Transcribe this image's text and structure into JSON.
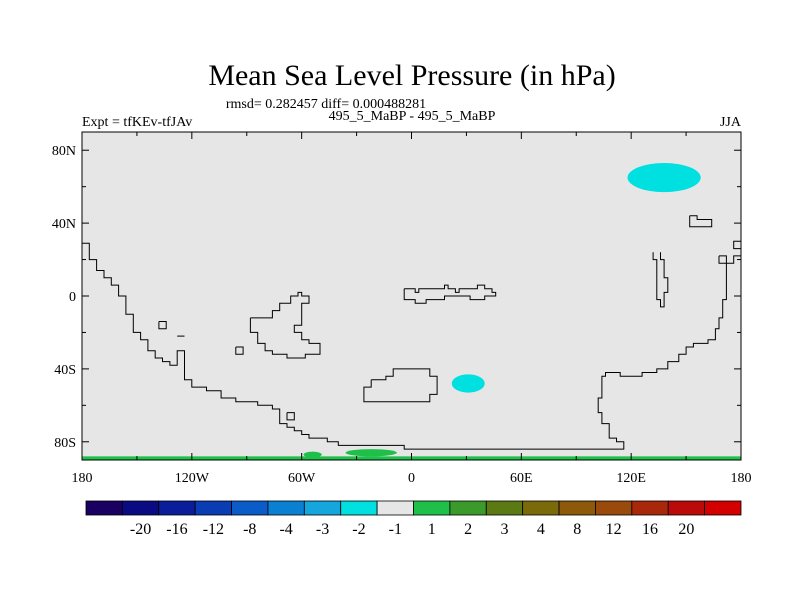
{
  "chart_data": {
    "type": "heatmap",
    "title": "Mean Sea Level Pressure (in hPa)",
    "stats_line": "rmsd= 0.282457 diff= 0.000488281",
    "experiment_label": "Expt = tfKEv-tfJAv",
    "subtitle": "495_5_MaBP - 495_5_MaBP",
    "season": "JJA",
    "xlim": [
      -180,
      180
    ],
    "ylim": [
      -90,
      90
    ],
    "x_ticks": [
      {
        "value": -180,
        "label": "180"
      },
      {
        "value": -120,
        "label": "120W"
      },
      {
        "value": -60,
        "label": "60W"
      },
      {
        "value": 0,
        "label": "0"
      },
      {
        "value": 60,
        "label": "60E"
      },
      {
        "value": 120,
        "label": "120E"
      },
      {
        "value": 180,
        "label": "180"
      }
    ],
    "y_ticks": [
      {
        "value": 80,
        "label": "80N"
      },
      {
        "value": 40,
        "label": "40N"
      },
      {
        "value": 0,
        "label": "0"
      },
      {
        "value": -40,
        "label": "40S"
      },
      {
        "value": -80,
        "label": "80S"
      }
    ],
    "background_bin_color": "#e6e6e6",
    "anomaly_regions": [
      {
        "lon": 138,
        "lat": 65,
        "lon_radius": 20,
        "lat_radius": 8,
        "color": "#00e0e0"
      },
      {
        "lon": 31,
        "lat": -48,
        "lon_radius": 9,
        "lat_radius": 5,
        "color": "#00e0e0"
      },
      {
        "lon": -22,
        "lat": -86,
        "lon_radius": 14,
        "lat_radius": 2,
        "color": "#1ec04a"
      },
      {
        "lon": -54,
        "lat": -87,
        "lon_radius": 5,
        "lat_radius": 1.6,
        "color": "#1ec04a"
      }
    ],
    "bottom_band": {
      "lat_from": -90,
      "lat_to": -88,
      "color": "#1ec04a"
    },
    "coastlines": [
      [
        [
          -180,
          29
        ],
        [
          -176,
          29
        ],
        [
          -176,
          20
        ],
        [
          -172,
          20
        ],
        [
          -172,
          14
        ],
        [
          -168,
          14
        ],
        [
          -168,
          10
        ],
        [
          -164,
          10
        ],
        [
          -164,
          6
        ],
        [
          -160,
          6
        ],
        [
          -160,
          0
        ],
        [
          -156,
          0
        ],
        [
          -156,
          -10
        ],
        [
          -152,
          -10
        ],
        [
          -152,
          -20
        ],
        [
          -148,
          -20
        ],
        [
          -148,
          -24
        ],
        [
          -144,
          -24
        ],
        [
          -144,
          -30
        ],
        [
          -140,
          -30
        ],
        [
          -140,
          -34
        ],
        [
          -136,
          -34
        ],
        [
          -136,
          -36
        ],
        [
          -132,
          -36
        ],
        [
          -132,
          -38
        ],
        [
          -128,
          -38
        ],
        [
          -128,
          -30
        ],
        [
          -124,
          -30
        ],
        [
          -124,
          -46
        ],
        [
          -120,
          -46
        ],
        [
          -120,
          -50
        ],
        [
          -112,
          -50
        ],
        [
          -112,
          -52
        ],
        [
          -104,
          -52
        ],
        [
          -104,
          -56
        ],
        [
          -96,
          -56
        ],
        [
          -96,
          -58
        ],
        [
          -84,
          -58
        ],
        [
          -84,
          -60
        ],
        [
          -76,
          -60
        ],
        [
          -76,
          -62
        ],
        [
          -72,
          -62
        ],
        [
          -72,
          -70
        ],
        [
          -68,
          -70
        ],
        [
          -68,
          -72
        ],
        [
          -64,
          -72
        ],
        [
          -64,
          -74
        ],
        [
          -60,
          -74
        ],
        [
          -60,
          -76
        ],
        [
          -56,
          -76
        ],
        [
          -56,
          -78
        ],
        [
          -46,
          -78
        ],
        [
          -46,
          -80
        ],
        [
          -40,
          -80
        ],
        [
          -40,
          -82
        ],
        [
          -4,
          -82
        ],
        [
          -4,
          -84
        ],
        [
          116,
          -84
        ],
        [
          116,
          -80
        ],
        [
          112,
          -80
        ],
        [
          112,
          -78
        ],
        [
          108,
          -78
        ],
        [
          108,
          -70
        ],
        [
          104,
          -70
        ],
        [
          104,
          -64
        ],
        [
          102,
          -64
        ],
        [
          102,
          -56
        ],
        [
          104,
          -56
        ],
        [
          104,
          -44
        ],
        [
          106,
          -44
        ],
        [
          106,
          -42
        ],
        [
          114,
          -42
        ],
        [
          114,
          -44
        ],
        [
          126,
          -44
        ],
        [
          126,
          -42
        ],
        [
          134,
          -42
        ],
        [
          134,
          -40
        ],
        [
          140,
          -40
        ],
        [
          140,
          -36
        ],
        [
          146,
          -36
        ],
        [
          146,
          -32
        ],
        [
          150,
          -32
        ],
        [
          150,
          -28
        ],
        [
          154,
          -28
        ],
        [
          154,
          -26
        ],
        [
          162,
          -26
        ],
        [
          162,
          -24
        ],
        [
          166,
          -24
        ],
        [
          166,
          -18
        ],
        [
          168,
          -18
        ],
        [
          168,
          -12
        ],
        [
          170,
          -12
        ],
        [
          170,
          -2
        ],
        [
          172,
          -2
        ],
        [
          172,
          18
        ],
        [
          176,
          18
        ],
        [
          176,
          22
        ],
        [
          180,
          22
        ]
      ],
      [
        [
          180,
          30
        ],
        [
          176,
          30
        ],
        [
          176,
          26
        ],
        [
          180,
          26
        ]
      ],
      [
        [
          -138,
          -14
        ],
        [
          -134,
          -14
        ],
        [
          -134,
          -18
        ],
        [
          -138,
          -18
        ],
        [
          -138,
          -14
        ]
      ],
      [
        [
          -128,
          -22
        ],
        [
          -124,
          -22
        ]
      ],
      [
        [
          -96,
          -28
        ],
        [
          -92,
          -28
        ],
        [
          -92,
          -32
        ],
        [
          -96,
          -32
        ],
        [
          -96,
          -28
        ]
      ],
      [
        [
          -88,
          -12
        ],
        [
          -76,
          -12
        ],
        [
          -76,
          -8
        ],
        [
          -72,
          -8
        ],
        [
          -72,
          -4
        ],
        [
          -66,
          -4
        ],
        [
          -66,
          0
        ],
        [
          -62,
          0
        ],
        [
          -62,
          2
        ],
        [
          -60,
          2
        ],
        [
          -60,
          0
        ],
        [
          -56,
          0
        ],
        [
          -56,
          -4
        ],
        [
          -60,
          -4
        ],
        [
          -60,
          -16
        ],
        [
          -64,
          -16
        ],
        [
          -64,
          -20
        ],
        [
          -60,
          -20
        ],
        [
          -60,
          -24
        ],
        [
          -56,
          -24
        ],
        [
          -56,
          -26
        ],
        [
          -50,
          -26
        ],
        [
          -50,
          -32
        ],
        [
          -58,
          -32
        ],
        [
          -58,
          -34
        ],
        [
          -68,
          -34
        ],
        [
          -68,
          -32
        ],
        [
          -76,
          -32
        ],
        [
          -76,
          -30
        ],
        [
          -80,
          -30
        ],
        [
          -80,
          -26
        ],
        [
          -84,
          -26
        ],
        [
          -84,
          -20
        ],
        [
          -88,
          -20
        ],
        [
          -88,
          -12
        ]
      ],
      [
        [
          -68,
          -64
        ],
        [
          -64,
          -64
        ],
        [
          -64,
          -68
        ],
        [
          -68,
          -68
        ],
        [
          -68,
          -64
        ]
      ],
      [
        [
          -4,
          4
        ],
        [
          2,
          4
        ],
        [
          2,
          2
        ],
        [
          4,
          2
        ],
        [
          4,
          4
        ],
        [
          18,
          4
        ],
        [
          18,
          6
        ],
        [
          20,
          6
        ],
        [
          20,
          4
        ],
        [
          24,
          4
        ],
        [
          24,
          2
        ],
        [
          26,
          2
        ],
        [
          26,
          4
        ],
        [
          36,
          4
        ],
        [
          36,
          6
        ],
        [
          40,
          6
        ],
        [
          40,
          4
        ],
        [
          44,
          4
        ],
        [
          44,
          2
        ],
        [
          46,
          2
        ],
        [
          46,
          0
        ],
        [
          40,
          0
        ],
        [
          40,
          -2
        ],
        [
          32,
          -2
        ],
        [
          32,
          0
        ],
        [
          18,
          0
        ],
        [
          18,
          -2
        ],
        [
          8,
          -2
        ],
        [
          8,
          -4
        ],
        [
          2,
          -4
        ],
        [
          2,
          -2
        ],
        [
          -4,
          -2
        ],
        [
          -4,
          4
        ]
      ],
      [
        [
          -22,
          -46
        ],
        [
          -14,
          -46
        ],
        [
          -14,
          -44
        ],
        [
          -10,
          -44
        ],
        [
          -10,
          -40
        ],
        [
          10,
          -40
        ],
        [
          10,
          -44
        ],
        [
          14,
          -44
        ],
        [
          14,
          -54
        ],
        [
          10,
          -54
        ],
        [
          10,
          -58
        ],
        [
          -26,
          -58
        ],
        [
          -26,
          -50
        ],
        [
          -22,
          -50
        ],
        [
          -22,
          -46
        ]
      ],
      [
        [
          136,
          24
        ],
        [
          136,
          20
        ],
        [
          138,
          20
        ],
        [
          138,
          10
        ],
        [
          140,
          10
        ],
        [
          140,
          2
        ],
        [
          138,
          2
        ],
        [
          138,
          -6
        ],
        [
          136,
          -6
        ],
        [
          136,
          -2
        ],
        [
          134,
          -2
        ],
        [
          134,
          20
        ],
        [
          132,
          20
        ],
        [
          132,
          24
        ]
      ],
      [
        [
          152,
          44
        ],
        [
          156,
          44
        ],
        [
          156,
          42
        ],
        [
          164,
          42
        ],
        [
          164,
          38
        ],
        [
          152,
          38
        ],
        [
          152,
          44
        ]
      ],
      [
        [
          168,
          22
        ],
        [
          172,
          22
        ],
        [
          172,
          18
        ],
        [
          168,
          18
        ],
        [
          168,
          22
        ]
      ]
    ],
    "colorbar": {
      "colors": [
        "#1a0060",
        "#0a0a82",
        "#0a1e9c",
        "#0a3cb4",
        "#0a5cc8",
        "#0a80d2",
        "#14a6dc",
        "#00e0e0",
        "#e6e6e6",
        "#1ec04a",
        "#3a9a2a",
        "#5c7a14",
        "#7a6a0a",
        "#8c5a0a",
        "#9a4a0a",
        "#aa280a",
        "#bc0a0a",
        "#d40000"
      ],
      "labels": [
        "-20",
        "-16",
        "-12",
        "-8",
        "-4",
        "-3",
        "-2",
        "-1",
        "1",
        "2",
        "3",
        "4",
        "8",
        "12",
        "16",
        "20"
      ]
    }
  }
}
